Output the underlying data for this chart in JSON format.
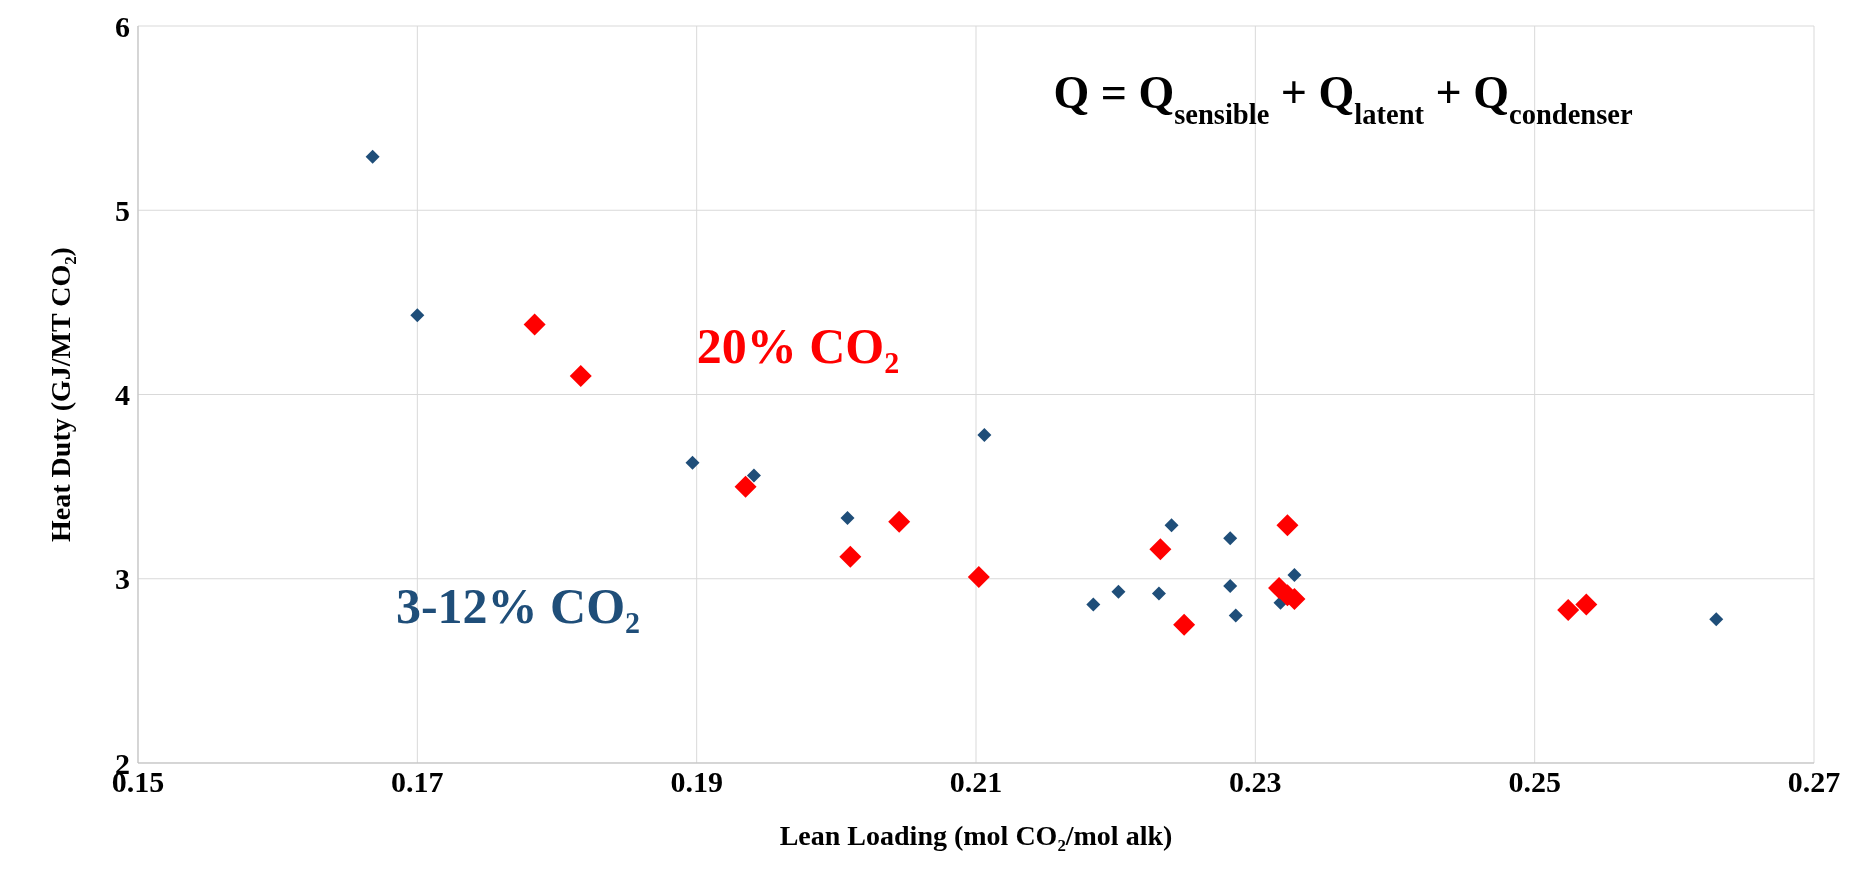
{
  "chart_data": {
    "type": "scatter",
    "xlabel": "Lean Loading (mol CO₂/mol alk)",
    "ylabel": "Heat Duty (GJ/MT CO₂)",
    "xlim": [
      0.15,
      0.27
    ],
    "xticks": [
      {
        "value": 0.15,
        "label": "0.15"
      },
      {
        "value": 0.17,
        "label": "0.17"
      },
      {
        "value": 0.19,
        "label": "0.19"
      },
      {
        "value": 0.21,
        "label": "0.21"
      },
      {
        "value": 0.23,
        "label": "0.23"
      },
      {
        "value": 0.25,
        "label": "0.25"
      },
      {
        "value": 0.27,
        "label": "0.27"
      }
    ],
    "ylim": [
      2,
      6
    ],
    "yticks": [
      2,
      3,
      4,
      5,
      6
    ],
    "grid": true,
    "marker": "diamond",
    "legend": false,
    "annotations": [
      "Q = Q$_{sensible}$ + Q$_{latent}$ + Q$_{condenser}$"
    ],
    "series": [
      {
        "name": "3-12% CO₂",
        "color": "#1f4e79",
        "x": [
          0.1668,
          0.17,
          0.1897,
          0.1941,
          0.2008,
          0.2106,
          0.2184,
          0.2202,
          0.2231,
          0.224,
          0.2282,
          0.2282,
          0.2286,
          0.2328,
          0.2318,
          0.263
        ],
        "values": [
          5.29,
          4.43,
          3.63,
          3.56,
          3.33,
          3.78,
          2.86,
          2.93,
          2.92,
          3.29,
          3.22,
          2.96,
          2.8,
          3.02,
          2.87,
          2.78
        ]
      },
      {
        "name": "20% CO₂",
        "color": "#ff0000",
        "x": [
          0.1784,
          0.1817,
          0.1935,
          0.2045,
          0.201,
          0.2102,
          0.2232,
          0.2323,
          0.2249,
          0.2317,
          0.2323,
          0.2328,
          0.2524,
          0.2537
        ],
        "values": [
          4.38,
          4.1,
          3.5,
          3.31,
          3.12,
          3.01,
          3.16,
          3.29,
          2.75,
          2.95,
          2.91,
          2.89,
          2.83,
          2.86
        ]
      }
    ]
  }
}
